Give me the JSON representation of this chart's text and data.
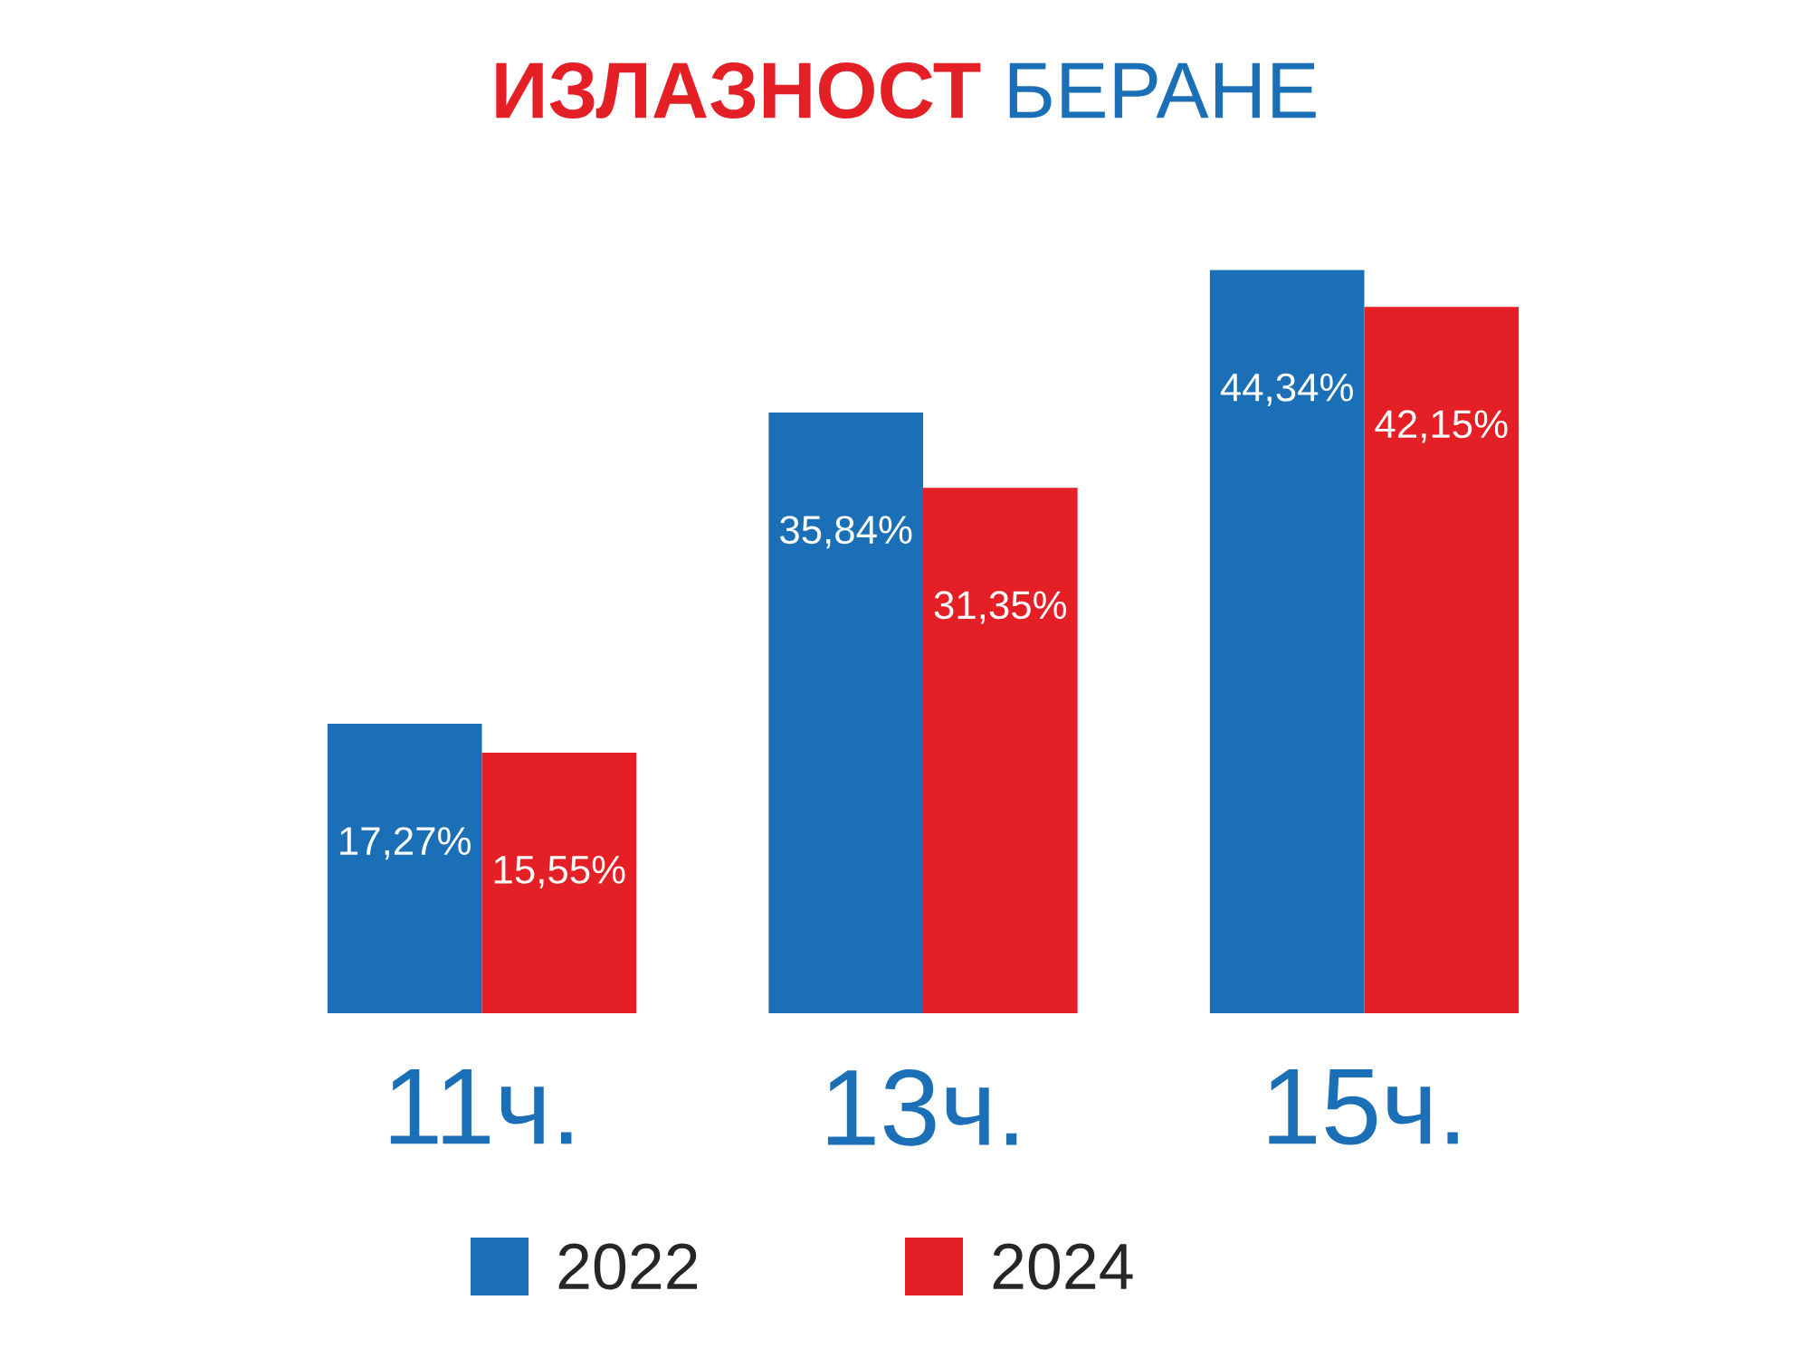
{
  "chart_data": {
    "type": "bar",
    "title": "ИЗЛАЗНОСТ",
    "subtitle": "БЕРАНЕ",
    "categories": [
      "11ч.",
      "13ч.",
      "15ч."
    ],
    "series": [
      {
        "name": "2022",
        "color": "#1b6fb6",
        "values": [
          17.27,
          35.84,
          44.34
        ],
        "value_labels": [
          "17,27%",
          "35,84%",
          "44,34%"
        ]
      },
      {
        "name": "2024",
        "color": "#e41f26",
        "values": [
          15.55,
          31.35,
          42.15
        ],
        "value_labels": [
          "15,55%",
          "31,35%",
          "42,15%"
        ]
      }
    ],
    "legend": "bottom"
  }
}
